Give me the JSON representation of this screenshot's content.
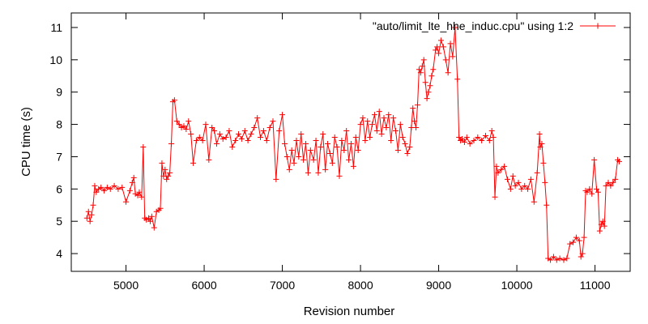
{
  "chart_data": {
    "type": "line",
    "title": "",
    "xlabel": "Revision number",
    "ylabel": "CPU time (s)",
    "xlim": [
      4300,
      11450
    ],
    "ylim": [
      3.45,
      11.45
    ],
    "x_ticks": [
      5000,
      6000,
      7000,
      8000,
      9000,
      10000,
      11000
    ],
    "x_tick_labels": [
      "5000",
      "6000",
      "7000",
      "8000",
      "9000",
      "10000",
      "11000"
    ],
    "y_ticks": [
      4,
      5,
      6,
      7,
      8,
      9,
      10,
      11
    ],
    "y_tick_labels": [
      "4",
      "5",
      "6",
      "7",
      "8",
      "9",
      "10",
      "11"
    ],
    "grid": false,
    "legend_position": "top-right",
    "marker": "plus",
    "series": [
      {
        "name": "\"auto/limit_lte_hhe_induc.cpu\" using 1:2",
        "color": "#ff0000",
        "points": [
          [
            4500,
            5.1
          ],
          [
            4520,
            5.3
          ],
          [
            4540,
            5.0
          ],
          [
            4560,
            5.2
          ],
          [
            4580,
            5.5
          ],
          [
            4600,
            6.1
          ],
          [
            4620,
            5.9
          ],
          [
            4650,
            6.0
          ],
          [
            4680,
            6.05
          ],
          [
            4720,
            5.95
          ],
          [
            4760,
            6.05
          ],
          [
            4800,
            6.0
          ],
          [
            4850,
            6.1
          ],
          [
            4900,
            6.0
          ],
          [
            4950,
            6.05
          ],
          [
            5000,
            5.6
          ],
          [
            5050,
            5.95
          ],
          [
            5080,
            6.2
          ],
          [
            5100,
            6.35
          ],
          [
            5120,
            5.85
          ],
          [
            5150,
            5.8
          ],
          [
            5170,
            5.9
          ],
          [
            5200,
            5.75
          ],
          [
            5220,
            7.3
          ],
          [
            5240,
            5.1
          ],
          [
            5260,
            5.05
          ],
          [
            5290,
            5.1
          ],
          [
            5310,
            5.0
          ],
          [
            5330,
            5.15
          ],
          [
            5360,
            4.8
          ],
          [
            5390,
            5.3
          ],
          [
            5420,
            5.35
          ],
          [
            5440,
            5.4
          ],
          [
            5460,
            6.8
          ],
          [
            5480,
            6.4
          ],
          [
            5500,
            6.6
          ],
          [
            5520,
            6.3
          ],
          [
            5540,
            6.4
          ],
          [
            5560,
            6.5
          ],
          [
            5580,
            7.4
          ],
          [
            5600,
            8.7
          ],
          [
            5620,
            8.75
          ],
          [
            5650,
            8.1
          ],
          [
            5680,
            8.0
          ],
          [
            5710,
            7.9
          ],
          [
            5740,
            7.95
          ],
          [
            5770,
            7.85
          ],
          [
            5800,
            8.1
          ],
          [
            5830,
            7.7
          ],
          [
            5860,
            6.8
          ],
          [
            5900,
            7.5
          ],
          [
            5940,
            7.6
          ],
          [
            5980,
            7.5
          ],
          [
            6020,
            8.0
          ],
          [
            6060,
            6.9
          ],
          [
            6100,
            7.9
          ],
          [
            6130,
            7.8
          ],
          [
            6160,
            7.4
          ],
          [
            6200,
            7.7
          ],
          [
            6240,
            7.55
          ],
          [
            6280,
            7.6
          ],
          [
            6320,
            7.8
          ],
          [
            6360,
            7.3
          ],
          [
            6400,
            7.5
          ],
          [
            6440,
            7.7
          ],
          [
            6480,
            7.55
          ],
          [
            6520,
            7.8
          ],
          [
            6560,
            7.5
          ],
          [
            6600,
            7.7
          ],
          [
            6640,
            7.9
          ],
          [
            6680,
            8.2
          ],
          [
            6720,
            7.6
          ],
          [
            6760,
            7.8
          ],
          [
            6800,
            7.5
          ],
          [
            6840,
            7.9
          ],
          [
            6880,
            8.1
          ],
          [
            6920,
            6.3
          ],
          [
            6960,
            7.8
          ],
          [
            7000,
            8.3
          ],
          [
            7030,
            7.4
          ],
          [
            7060,
            7.0
          ],
          [
            7090,
            6.6
          ],
          [
            7120,
            7.2
          ],
          [
            7150,
            6.8
          ],
          [
            7180,
            7.5
          ],
          [
            7210,
            7.0
          ],
          [
            7240,
            7.7
          ],
          [
            7270,
            6.9
          ],
          [
            7300,
            7.4
          ],
          [
            7330,
            6.5
          ],
          [
            7360,
            7.2
          ],
          [
            7400,
            6.9
          ],
          [
            7430,
            7.5
          ],
          [
            7460,
            6.5
          ],
          [
            7490,
            7.3
          ],
          [
            7520,
            7.7
          ],
          [
            7550,
            6.6
          ],
          [
            7580,
            7.4
          ],
          [
            7610,
            7.1
          ],
          [
            7640,
            6.8
          ],
          [
            7670,
            7.6
          ],
          [
            7700,
            7.3
          ],
          [
            7730,
            6.4
          ],
          [
            7760,
            7.5
          ],
          [
            7790,
            7.2
          ],
          [
            7820,
            7.8
          ],
          [
            7850,
            6.9
          ],
          [
            7880,
            7.4
          ],
          [
            7910,
            6.7
          ],
          [
            7940,
            7.6
          ],
          [
            7970,
            7.2
          ],
          [
            8000,
            8.0
          ],
          [
            8030,
            8.2
          ],
          [
            8060,
            7.5
          ],
          [
            8090,
            8.1
          ],
          [
            8120,
            7.6
          ],
          [
            8150,
            8.0
          ],
          [
            8180,
            8.3
          ],
          [
            8210,
            7.8
          ],
          [
            8240,
            8.4
          ],
          [
            8270,
            7.7
          ],
          [
            8300,
            8.2
          ],
          [
            8330,
            7.9
          ],
          [
            8360,
            8.3
          ],
          [
            8390,
            7.5
          ],
          [
            8420,
            8.2
          ],
          [
            8450,
            7.8
          ],
          [
            8480,
            7.2
          ],
          [
            8510,
            8.0
          ],
          [
            8540,
            7.6
          ],
          [
            8570,
            7.4
          ],
          [
            8600,
            7.1
          ],
          [
            8630,
            7.3
          ],
          [
            8650,
            7.9
          ],
          [
            8670,
            8.5
          ],
          [
            8690,
            8.1
          ],
          [
            8710,
            7.9
          ],
          [
            8730,
            8.6
          ],
          [
            8750,
            9.7
          ],
          [
            8770,
            9.6
          ],
          [
            8790,
            9.8
          ],
          [
            8810,
            10.0
          ],
          [
            8830,
            9.3
          ],
          [
            8850,
            8.8
          ],
          [
            8870,
            9.0
          ],
          [
            8890,
            9.2
          ],
          [
            8910,
            9.5
          ],
          [
            8930,
            9.7
          ],
          [
            8960,
            10.3
          ],
          [
            8980,
            10.4
          ],
          [
            9000,
            10.2
          ],
          [
            9030,
            10.6
          ],
          [
            9060,
            10.4
          ],
          [
            9090,
            10.0
          ],
          [
            9120,
            9.6
          ],
          [
            9150,
            10.5
          ],
          [
            9180,
            10.1
          ],
          [
            9210,
            11.0
          ],
          [
            9240,
            9.4
          ],
          [
            9260,
            7.6
          ],
          [
            9280,
            7.5
          ],
          [
            9300,
            7.55
          ],
          [
            9330,
            7.45
          ],
          [
            9360,
            7.6
          ],
          [
            9400,
            7.4
          ],
          [
            9450,
            7.5
          ],
          [
            9500,
            7.6
          ],
          [
            9550,
            7.5
          ],
          [
            9600,
            7.65
          ],
          [
            9650,
            7.5
          ],
          [
            9680,
            7.8
          ],
          [
            9700,
            7.6
          ],
          [
            9720,
            5.75
          ],
          [
            9740,
            6.7
          ],
          [
            9760,
            6.5
          ],
          [
            9800,
            6.6
          ],
          [
            9840,
            6.7
          ],
          [
            9880,
            6.3
          ],
          [
            9920,
            6.0
          ],
          [
            9950,
            6.4
          ],
          [
            9980,
            6.1
          ],
          [
            10020,
            6.2
          ],
          [
            10060,
            6.0
          ],
          [
            10100,
            6.1
          ],
          [
            10140,
            6.0
          ],
          [
            10180,
            6.3
          ],
          [
            10220,
            5.6
          ],
          [
            10260,
            6.5
          ],
          [
            10290,
            7.7
          ],
          [
            10300,
            7.3
          ],
          [
            10320,
            7.4
          ],
          [
            10340,
            6.8
          ],
          [
            10360,
            6.2
          ],
          [
            10380,
            5.5
          ],
          [
            10400,
            3.85
          ],
          [
            10430,
            3.8
          ],
          [
            10470,
            3.9
          ],
          [
            10510,
            3.8
          ],
          [
            10550,
            3.85
          ],
          [
            10600,
            3.8
          ],
          [
            10640,
            3.85
          ],
          [
            10680,
            4.3
          ],
          [
            10720,
            4.35
          ],
          [
            10760,
            4.5
          ],
          [
            10800,
            4.4
          ],
          [
            10820,
            3.9
          ],
          [
            10840,
            4.0
          ],
          [
            10860,
            4.5
          ],
          [
            10880,
            5.95
          ],
          [
            10900,
            5.9
          ],
          [
            10930,
            6.0
          ],
          [
            10960,
            5.85
          ],
          [
            10990,
            6.9
          ],
          [
            11020,
            6.0
          ],
          [
            11040,
            5.9
          ],
          [
            11060,
            4.7
          ],
          [
            11080,
            4.9
          ],
          [
            11100,
            5.0
          ],
          [
            11120,
            4.85
          ],
          [
            11140,
            6.1
          ],
          [
            11170,
            6.2
          ],
          [
            11200,
            6.1
          ],
          [
            11230,
            6.2
          ],
          [
            11260,
            6.3
          ],
          [
            11290,
            6.9
          ],
          [
            11310,
            6.85
          ]
        ]
      }
    ]
  }
}
